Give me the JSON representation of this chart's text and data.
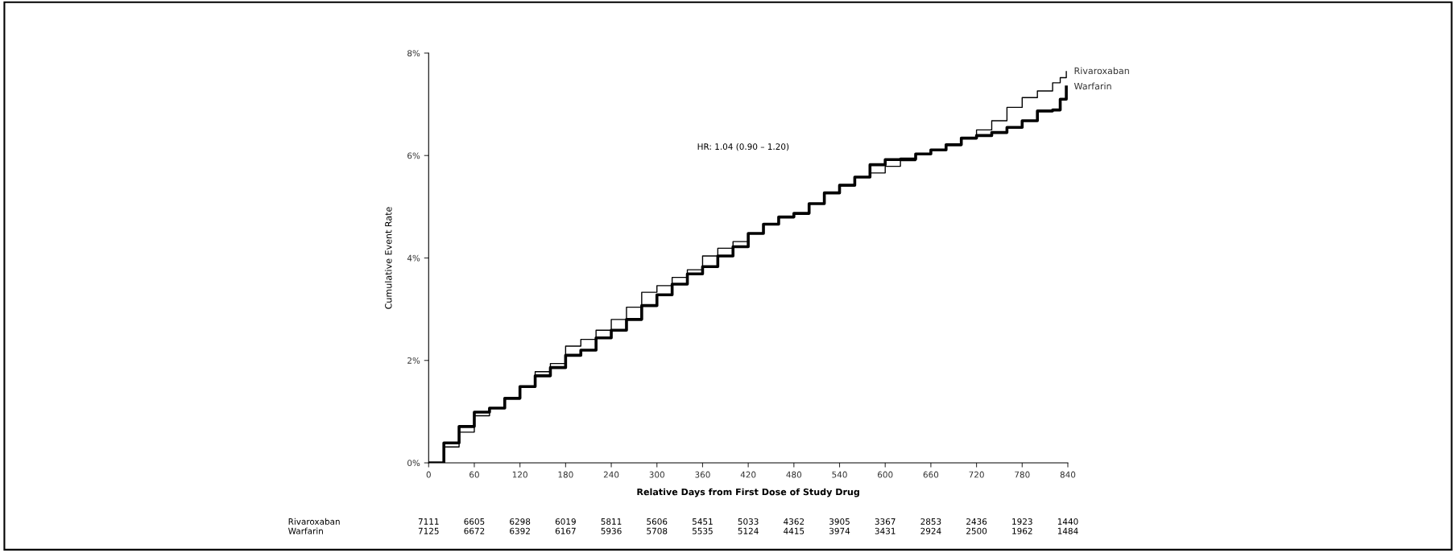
{
  "chart_data": {
    "type": "step",
    "xlabel": "Relative Days from First Dose of Study Drug",
    "ylabel": "Cumulative Event Rate",
    "annotations": [
      "HR: 1.04 (0.90 – 1.20)",
      "Rivaroxaban 7111 6605 6298 6019 5811 5606 5451 5033 4362 3905 3367 2853 2436 1923 1440",
      "Warfarin 7125 6672 6392 6167 5936 5708 5535 5124 4415 3974 3431 2924 2500 1962 1484"
    ],
    "x": [
      0,
      20,
      40,
      60,
      80,
      100,
      120,
      140,
      160,
      180,
      200,
      220,
      240,
      260,
      280,
      300,
      320,
      340,
      360,
      380,
      400,
      420,
      440,
      460,
      480,
      500,
      520,
      540,
      560,
      580,
      600,
      620,
      640,
      660,
      680,
      700,
      720,
      740,
      760,
      780,
      800,
      820,
      830,
      838
    ],
    "series": [
      {
        "name": "Rivaroxaban",
        "color": "#000000",
        "values": [
          0,
          0.31,
          0.6,
          0.92,
          1.07,
          1.26,
          1.49,
          1.78,
          1.94,
          2.28,
          2.41,
          2.59,
          2.8,
          3.04,
          3.33,
          3.46,
          3.62,
          3.77,
          4.04,
          4.19,
          4.32,
          4.48,
          4.66,
          4.8,
          4.87,
          5.06,
          5.27,
          5.42,
          5.58,
          5.66,
          5.79,
          5.9,
          6.03,
          6.11,
          6.21,
          6.34,
          6.5,
          6.68,
          6.94,
          7.13,
          7.26,
          7.42,
          7.52,
          7.64
        ]
      },
      {
        "name": "Warfarin",
        "color": "#000000",
        "values": [
          0,
          0.39,
          0.71,
          0.99,
          1.07,
          1.26,
          1.49,
          1.7,
          1.86,
          2.1,
          2.2,
          2.44,
          2.59,
          2.8,
          3.07,
          3.28,
          3.49,
          3.69,
          3.83,
          4.04,
          4.22,
          4.48,
          4.66,
          4.8,
          4.87,
          5.06,
          5.27,
          5.42,
          5.58,
          5.82,
          5.92,
          5.93,
          6.03,
          6.11,
          6.21,
          6.34,
          6.39,
          6.45,
          6.55,
          6.68,
          6.87,
          6.89,
          7.1,
          7.34
        ]
      }
    ],
    "xlim": [
      0,
      840
    ],
    "xticks": [
      0,
      60,
      120,
      180,
      240,
      300,
      360,
      420,
      480,
      540,
      600,
      660,
      720,
      780,
      840
    ],
    "ylim": [
      0,
      8
    ],
    "yticks": [
      {
        "value": 0,
        "label": "0%"
      },
      {
        "value": 2,
        "label": "2%"
      },
      {
        "value": 4,
        "label": "4%"
      },
      {
        "value": 6,
        "label": "6%"
      },
      {
        "value": 8,
        "label": "8%"
      }
    ],
    "grid": false,
    "legend": false,
    "line_style": "solid",
    "marker": "none"
  }
}
